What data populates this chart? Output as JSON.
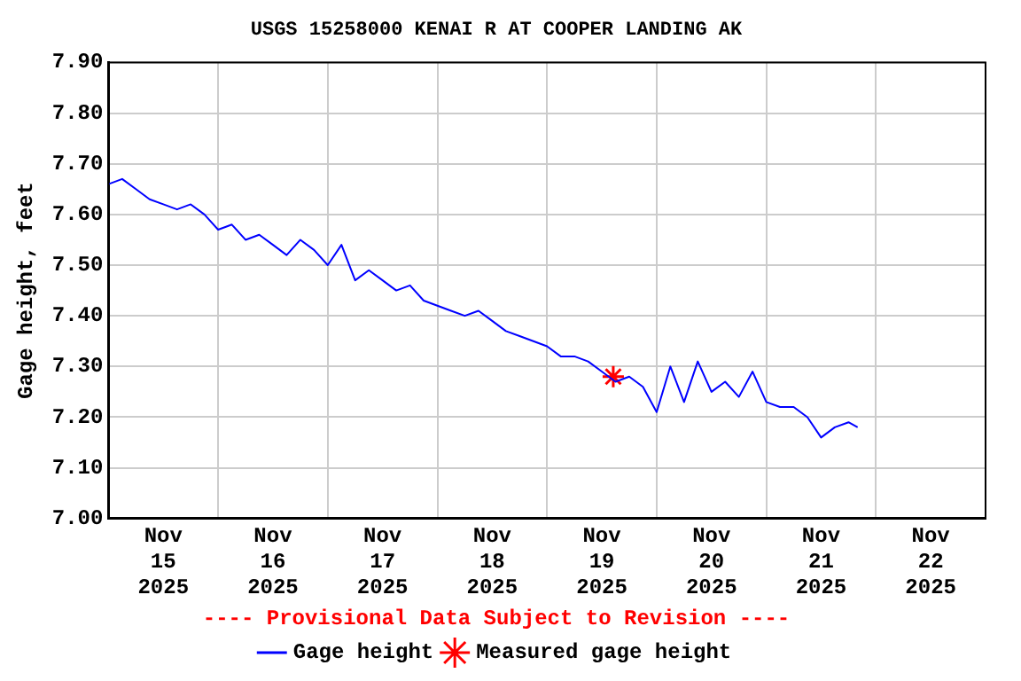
{
  "chart_data": {
    "type": "line",
    "title": "USGS 15258000 KENAI R AT COOPER LANDING AK",
    "ylabel": "Gage height, feet",
    "annotations": [
      "---- Provisional Data Subject to Revision ----"
    ],
    "x": [
      "2025-11-15T00:00",
      "2025-11-15T03:00",
      "2025-11-15T06:00",
      "2025-11-15T09:00",
      "2025-11-15T12:00",
      "2025-11-15T15:00",
      "2025-11-15T18:00",
      "2025-11-15T21:00",
      "2025-11-16T00:00",
      "2025-11-16T03:00",
      "2025-11-16T06:00",
      "2025-11-16T09:00",
      "2025-11-16T12:00",
      "2025-11-16T15:00",
      "2025-11-16T18:00",
      "2025-11-16T21:00",
      "2025-11-17T00:00",
      "2025-11-17T03:00",
      "2025-11-17T06:00",
      "2025-11-17T09:00",
      "2025-11-17T12:00",
      "2025-11-17T15:00",
      "2025-11-17T18:00",
      "2025-11-17T21:00",
      "2025-11-18T00:00",
      "2025-11-18T03:00",
      "2025-11-18T06:00",
      "2025-11-18T09:00",
      "2025-11-18T12:00",
      "2025-11-18T15:00",
      "2025-11-18T18:00",
      "2025-11-18T21:00",
      "2025-11-19T00:00",
      "2025-11-19T03:00",
      "2025-11-19T06:00",
      "2025-11-19T09:00",
      "2025-11-19T12:00",
      "2025-11-19T15:00",
      "2025-11-19T18:00",
      "2025-11-19T21:00",
      "2025-11-20T00:00",
      "2025-11-20T03:00",
      "2025-11-20T06:00",
      "2025-11-20T09:00",
      "2025-11-20T12:00",
      "2025-11-20T15:00",
      "2025-11-20T18:00",
      "2025-11-20T21:00",
      "2025-11-21T00:00",
      "2025-11-21T03:00",
      "2025-11-21T06:00",
      "2025-11-21T09:00",
      "2025-11-21T12:00",
      "2025-11-21T15:00",
      "2025-11-21T18:00",
      "2025-11-21T20:00"
    ],
    "series": [
      {
        "name": "Gage height",
        "color": "#0000ff",
        "marker": "none",
        "values": [
          7.66,
          7.67,
          7.65,
          7.63,
          7.62,
          7.61,
          7.62,
          7.6,
          7.57,
          7.58,
          7.55,
          7.56,
          7.54,
          7.52,
          7.55,
          7.53,
          7.5,
          7.54,
          7.47,
          7.49,
          7.47,
          7.45,
          7.46,
          7.43,
          7.42,
          7.41,
          7.4,
          7.41,
          7.39,
          7.37,
          7.36,
          7.35,
          7.34,
          7.32,
          7.32,
          7.31,
          7.29,
          7.27,
          7.28,
          7.26,
          7.21,
          7.3,
          7.23,
          7.31,
          7.25,
          7.27,
          7.24,
          7.29,
          7.23,
          7.22,
          7.22,
          7.2,
          7.16,
          7.18,
          7.19,
          7.18
        ]
      },
      {
        "name": "Measured gage height",
        "type": "scatter",
        "color": "#ff0000",
        "marker": "cross",
        "x": [
          "2025-11-19T14:30"
        ],
        "values": [
          7.28
        ]
      }
    ],
    "xlim": [
      "2025-11-15T00:00",
      "2025-11-23T00:00"
    ],
    "xticks": [
      {
        "value": "2025-11-15T00:00",
        "label": null
      },
      {
        "value": "2025-11-15T12:00",
        "label": "Nov\n15\n2025"
      },
      {
        "value": "2025-11-16T00:00",
        "label": null
      },
      {
        "value": "2025-11-16T12:00",
        "label": "Nov\n16\n2025"
      },
      {
        "value": "2025-11-17T00:00",
        "label": null
      },
      {
        "value": "2025-11-17T12:00",
        "label": "Nov\n17\n2025"
      },
      {
        "value": "2025-11-18T00:00",
        "label": null
      },
      {
        "value": "2025-11-18T12:00",
        "label": "Nov\n18\n2025"
      },
      {
        "value": "2025-11-19T00:00",
        "label": null
      },
      {
        "value": "2025-11-19T12:00",
        "label": "Nov\n19\n2025"
      },
      {
        "value": "2025-11-20T00:00",
        "label": null
      },
      {
        "value": "2025-11-20T12:00",
        "label": "Nov\n20\n2025"
      },
      {
        "value": "2025-11-21T00:00",
        "label": null
      },
      {
        "value": "2025-11-21T12:00",
        "label": "Nov\n21\n2025"
      },
      {
        "value": "2025-11-22T00:00",
        "label": null
      },
      {
        "value": "2025-11-22T12:00",
        "label": "Nov\n22\n2025"
      },
      {
        "value": "2025-11-23T00:00",
        "label": null
      }
    ],
    "ylim": [
      7.0,
      7.9
    ],
    "yticks": [
      {
        "value": 7.0,
        "label": "7.00"
      },
      {
        "value": 7.1,
        "label": "7.10"
      },
      {
        "value": 7.2,
        "label": "7.20"
      },
      {
        "value": 7.3,
        "label": "7.30"
      },
      {
        "value": 7.4,
        "label": "7.40"
      },
      {
        "value": 7.5,
        "label": "7.50"
      },
      {
        "value": 7.6,
        "label": "7.60"
      },
      {
        "value": 7.7,
        "label": "7.70"
      },
      {
        "value": 7.8,
        "label": "7.80"
      },
      {
        "value": 7.9,
        "label": "7.90"
      }
    ],
    "grid": true,
    "legend": "bottom",
    "line_style": "solid"
  }
}
